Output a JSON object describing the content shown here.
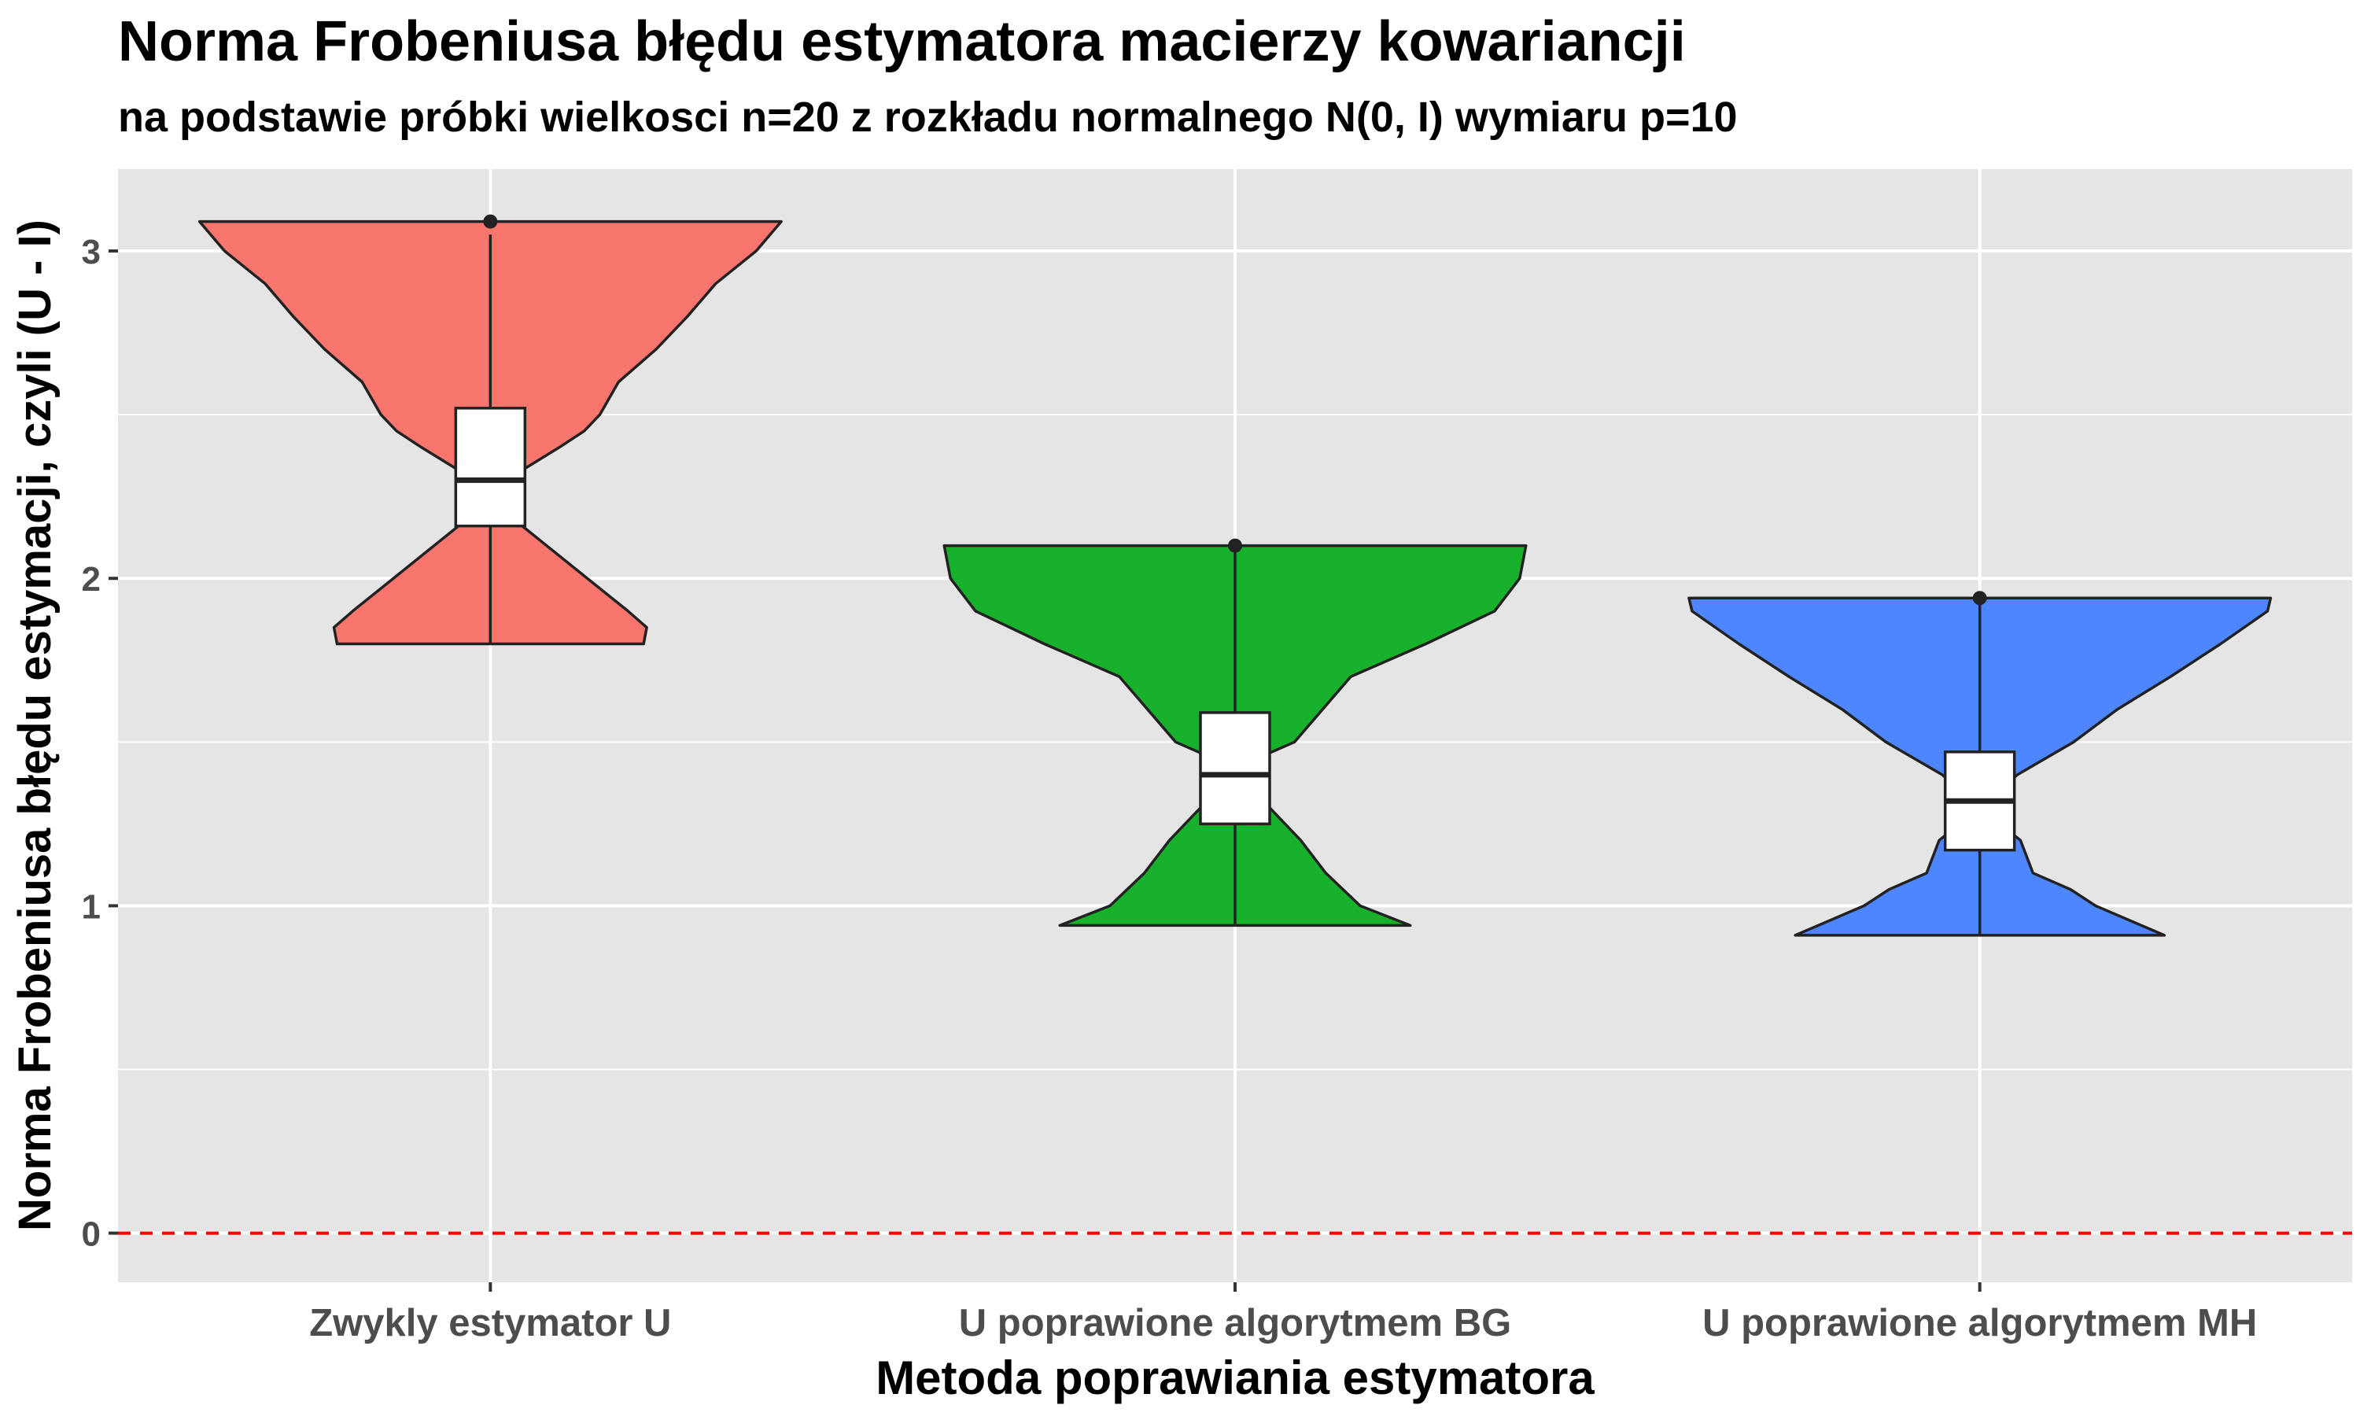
{
  "chart_data": {
    "type": "violin",
    "title": "Norma Frobeniusa błędu estymatora macierzy kowariancji",
    "subtitle": "na podstawie próbki wielkosci n=20 z rozkładu normalnego N(0, I) wymiaru p=10",
    "xlabel": "Metoda poprawiania estymatora",
    "ylabel": "Norma Frobeniusa błędu estymacji, czyli (U - I)",
    "ylim": [
      -0.15,
      3.25
    ],
    "yticks": [
      0,
      1,
      2,
      3
    ],
    "grid": true,
    "reference_line": {
      "y": 0,
      "style": "dashed",
      "color": "#ff0000"
    },
    "categories": [
      "Zwykly estymator U",
      "U poprawione algorytmem BG",
      "U poprawione algorytmem MH"
    ],
    "series": [
      {
        "category": "Zwykly estymator U",
        "color": "#f8766d",
        "min": 1.8,
        "q1": 2.16,
        "median": 2.3,
        "q3": 2.52,
        "max": 3.05,
        "outliers": [
          3.09
        ],
        "density": [
          [
            1.8,
            0.49
          ],
          [
            1.85,
            0.5
          ],
          [
            1.9,
            0.44
          ],
          [
            2.0,
            0.31
          ],
          [
            2.1,
            0.18
          ],
          [
            2.2,
            0.05
          ],
          [
            2.24,
            0
          ],
          [
            2.3,
            0.05
          ],
          [
            2.4,
            0.22
          ],
          [
            2.45,
            0.3
          ],
          [
            2.5,
            0.35
          ],
          [
            2.6,
            0.41
          ],
          [
            2.7,
            0.53
          ],
          [
            2.8,
            0.63
          ],
          [
            2.9,
            0.72
          ],
          [
            3.0,
            0.85
          ],
          [
            3.09,
            0.93
          ]
        ]
      },
      {
        "category": "U poprawione algorytmem BG",
        "color": "#17b12b",
        "min": 0.94,
        "q1": 1.25,
        "median": 1.4,
        "q3": 1.59,
        "max": 2.1,
        "outliers": [
          2.1
        ],
        "density": [
          [
            0.94,
            0.56
          ],
          [
            1.0,
            0.4
          ],
          [
            1.1,
            0.29
          ],
          [
            1.2,
            0.21
          ],
          [
            1.3,
            0.11
          ],
          [
            1.38,
            0
          ],
          [
            1.45,
            0.07
          ],
          [
            1.5,
            0.19
          ],
          [
            1.6,
            0.28
          ],
          [
            1.7,
            0.37
          ],
          [
            1.8,
            0.61
          ],
          [
            1.9,
            0.83
          ],
          [
            2.0,
            0.91
          ],
          [
            2.1,
            0.93
          ]
        ]
      },
      {
        "category": "U poprawione algorytmem MH",
        "color": "#4e86ff",
        "min": 0.91,
        "q1": 1.17,
        "median": 1.32,
        "q3": 1.47,
        "max": 1.94,
        "outliers": [
          1.94
        ],
        "density": [
          [
            0.91,
            0.59
          ],
          [
            1.0,
            0.37
          ],
          [
            1.05,
            0.29
          ],
          [
            1.1,
            0.17
          ],
          [
            1.2,
            0.13
          ],
          [
            1.3,
            0
          ],
          [
            1.4,
            0.12
          ],
          [
            1.5,
            0.3
          ],
          [
            1.6,
            0.44
          ],
          [
            1.7,
            0.61
          ],
          [
            1.8,
            0.77
          ],
          [
            1.9,
            0.92
          ],
          [
            1.94,
            0.93
          ]
        ]
      }
    ]
  }
}
